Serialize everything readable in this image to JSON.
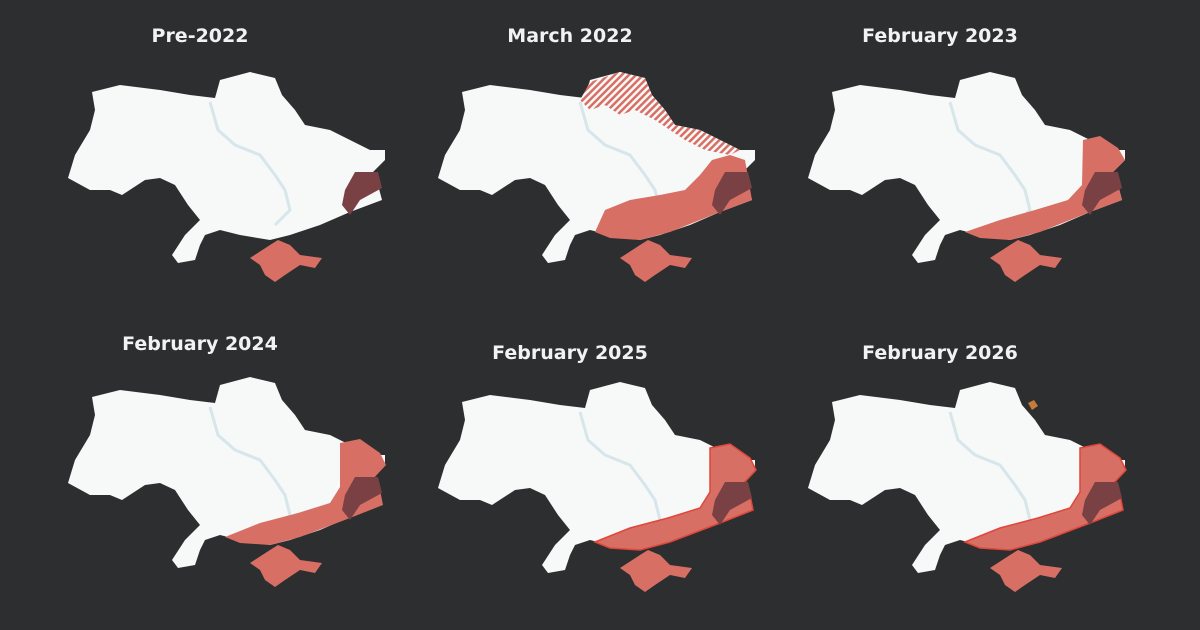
{
  "colors": {
    "background": "#2d2e30",
    "territory": "#f7f8f8",
    "river": "#d6e6ea",
    "occupied": "#d86f64",
    "occupied_pre2022": "#7a4144",
    "advance": "#e0463c"
  },
  "maps": [
    {
      "title": "Pre-2022",
      "stage": "pre2022"
    },
    {
      "title": "March 2022",
      "stage": "mar2022"
    },
    {
      "title": "February 2023",
      "stage": "feb2023"
    },
    {
      "title": "February 2024",
      "stage": "feb2024"
    },
    {
      "title": "February 2025",
      "stage": "feb2025"
    },
    {
      "title": "February 2026",
      "stage": "feb2026"
    }
  ]
}
